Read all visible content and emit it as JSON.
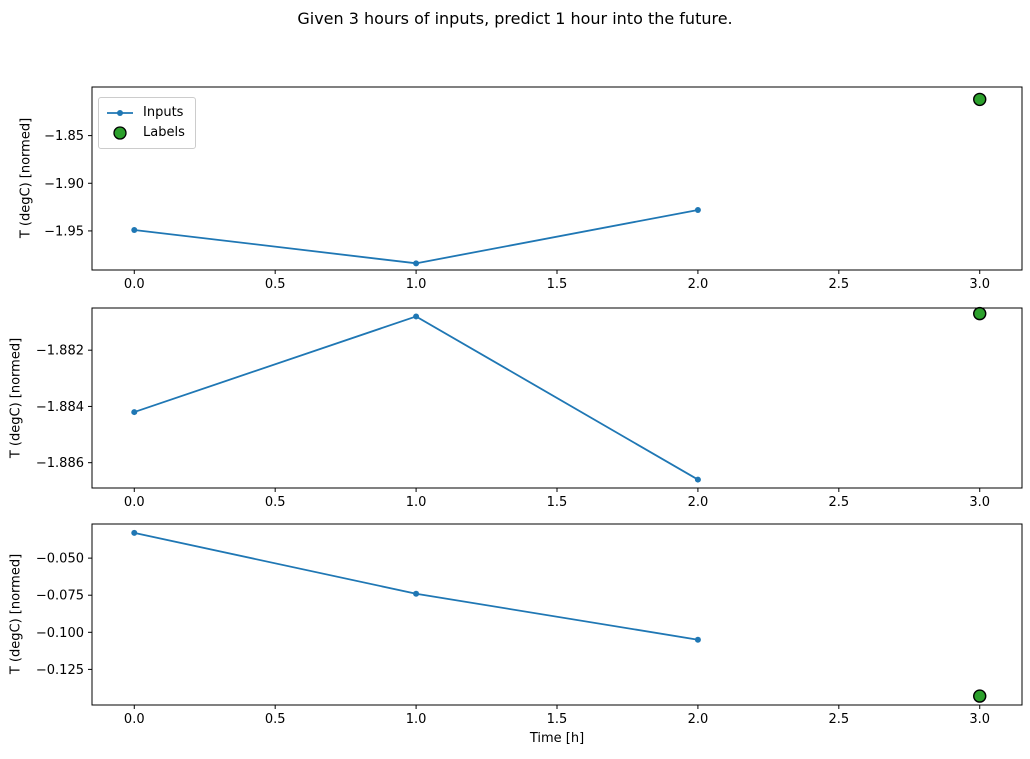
{
  "figure": {
    "title": "Given 3 hours of inputs, predict 1 hour into the future.",
    "background": "#ffffff"
  },
  "colors": {
    "inputs_line": "#1f77b4",
    "labels_marker_fill": "#2ca02c",
    "labels_marker_edge": "#000000",
    "axis": "#000000",
    "legend_border": "#cccccc"
  },
  "chart_data": [
    {
      "type": "line",
      "title": "",
      "xlabel": "",
      "ylabel": "T (degC) [normed]",
      "x": [
        0,
        1,
        2
      ],
      "series": [
        {
          "name": "Inputs",
          "values": [
            -1.949,
            -1.984,
            -1.928
          ],
          "color": "#1f77b4",
          "marker": "small-dot"
        }
      ],
      "labels_point": {
        "name": "Labels",
        "x": 3,
        "y": -1.812,
        "color": "#2ca02c",
        "edge": "#000000"
      },
      "xlim": [
        -0.15,
        3.15
      ],
      "ylim": [
        -1.991,
        -1.799
      ],
      "xticks": [
        0.0,
        0.5,
        1.0,
        1.5,
        2.0,
        2.5,
        3.0
      ],
      "xtick_labels": [
        "0.0",
        "0.5",
        "1.0",
        "1.5",
        "2.0",
        "2.5",
        "3.0"
      ],
      "yticks": [
        -1.85,
        -1.9,
        -1.95
      ],
      "ytick_labels": [
        "−1.85",
        "−1.90",
        "−1.95"
      ],
      "grid": false,
      "legend_position": "upper-left"
    },
    {
      "type": "line",
      "title": "",
      "xlabel": "",
      "ylabel": "T (degC) [normed]",
      "x": [
        0,
        1,
        2
      ],
      "series": [
        {
          "name": "Inputs",
          "values": [
            -1.8842,
            -1.8808,
            -1.8866
          ],
          "color": "#1f77b4",
          "marker": "small-dot"
        }
      ],
      "labels_point": {
        "name": "Labels",
        "x": 3,
        "y": -1.8807,
        "color": "#2ca02c",
        "edge": "#000000"
      },
      "xlim": [
        -0.15,
        3.15
      ],
      "ylim": [
        -1.8869,
        -1.8805
      ],
      "xticks": [
        0.0,
        0.5,
        1.0,
        1.5,
        2.0,
        2.5,
        3.0
      ],
      "xtick_labels": [
        "0.0",
        "0.5",
        "1.0",
        "1.5",
        "2.0",
        "2.5",
        "3.0"
      ],
      "yticks": [
        -1.882,
        -1.884,
        -1.886
      ],
      "ytick_labels": [
        "−1.882",
        "−1.884",
        "−1.886"
      ],
      "grid": false,
      "legend_position": "none"
    },
    {
      "type": "line",
      "title": "",
      "xlabel": "Time [h]",
      "ylabel": "T (degC) [normed]",
      "x": [
        0,
        1,
        2
      ],
      "series": [
        {
          "name": "Inputs",
          "values": [
            -0.033,
            -0.074,
            -0.105
          ],
          "color": "#1f77b4",
          "marker": "small-dot"
        }
      ],
      "labels_point": {
        "name": "Labels",
        "x": 3,
        "y": -0.143,
        "color": "#2ca02c",
        "edge": "#000000"
      },
      "xlim": [
        -0.15,
        3.15
      ],
      "ylim": [
        -0.149,
        -0.027
      ],
      "xticks": [
        0.0,
        0.5,
        1.0,
        1.5,
        2.0,
        2.5,
        3.0
      ],
      "xtick_labels": [
        "0.0",
        "0.5",
        "1.0",
        "1.5",
        "2.0",
        "2.5",
        "3.0"
      ],
      "yticks": [
        -0.05,
        -0.075,
        -0.1,
        -0.125
      ],
      "ytick_labels": [
        "−0.050",
        "−0.075",
        "−0.100",
        "−0.125"
      ],
      "grid": false,
      "legend_position": "none"
    }
  ]
}
